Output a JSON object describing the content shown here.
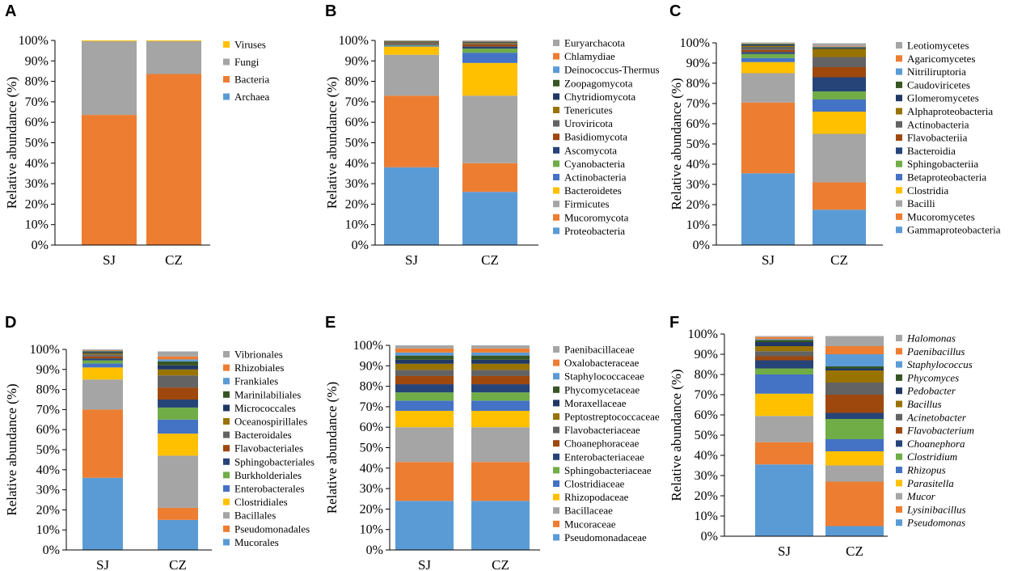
{
  "figure": {
    "y_tick_labels": [
      "0%",
      "10%",
      "20%",
      "30%",
      "40%",
      "50%",
      "60%",
      "70%",
      "80%",
      "90%",
      "100%"
    ]
  },
  "chart_data": [
    {
      "panel": "A",
      "type": "bar",
      "stacked": true,
      "ylabel": "Relative abundance (%)",
      "ylim": [
        0,
        100
      ],
      "categories": [
        "SJ",
        "CZ"
      ],
      "legend_italic": false,
      "series": [
        {
          "name": "Archaea",
          "color": "#5B9BD5",
          "values": [
            0.1,
            0.1
          ]
        },
        {
          "name": "Bacteria",
          "color": "#ED7D31",
          "values": [
            63.5,
            83.5
          ]
        },
        {
          "name": "Fungi",
          "color": "#A5A5A5",
          "values": [
            36.0,
            16.0
          ]
        },
        {
          "name": "Viruses",
          "color": "#FFC000",
          "values": [
            0.4,
            0.4
          ]
        }
      ]
    },
    {
      "panel": "B",
      "type": "bar",
      "stacked": true,
      "ylabel": "Relative abundance (%)",
      "ylim": [
        0,
        100
      ],
      "categories": [
        "SJ",
        "CZ"
      ],
      "legend_italic": false,
      "series": [
        {
          "name": "Proteobacteria",
          "color": "#5B9BD5",
          "values": [
            38,
            26
          ]
        },
        {
          "name": "Mucoromycota",
          "color": "#ED7D31",
          "values": [
            35,
            14
          ]
        },
        {
          "name": "Firmicutes",
          "color": "#A5A5A5",
          "values": [
            20,
            33
          ]
        },
        {
          "name": "Bacteroidetes",
          "color": "#FFC000",
          "values": [
            4,
            16
          ]
        },
        {
          "name": "Actinobacteria",
          "color": "#4472C4",
          "values": [
            0.5,
            5
          ]
        },
        {
          "name": "Cyanobacteria",
          "color": "#70AD47",
          "values": [
            0.3,
            2
          ]
        },
        {
          "name": "Ascomycota",
          "color": "#264478",
          "values": [
            0.3,
            1
          ]
        },
        {
          "name": "Basidiomycota",
          "color": "#9E480E",
          "values": [
            0.3,
            1
          ]
        },
        {
          "name": "Uroviricota",
          "color": "#636363",
          "values": [
            1,
            0.5
          ]
        },
        {
          "name": "Tenericutes",
          "color": "#997300",
          "values": [
            0.2,
            0.3
          ]
        },
        {
          "name": "Chytridiomycota",
          "color": "#203864",
          "values": [
            0.1,
            0.2
          ]
        },
        {
          "name": "Zoopagomycota",
          "color": "#375623",
          "values": [
            0.1,
            0.2
          ]
        },
        {
          "name": "Deinococcus-Thermus",
          "color": "#5B9BD5",
          "values": [
            0.05,
            0.2
          ]
        },
        {
          "name": "Chlamydiae",
          "color": "#ED7D31",
          "values": [
            0.05,
            0.2
          ]
        },
        {
          "name": "Euryarchacota",
          "color": "#A5A5A5",
          "values": [
            0.1,
            0.4
          ]
        }
      ]
    },
    {
      "panel": "C",
      "type": "bar",
      "stacked": true,
      "ylabel": "Relative abundance (%)",
      "ylim": [
        0,
        100
      ],
      "categories": [
        "SJ",
        "CZ"
      ],
      "legend_italic": false,
      "series": [
        {
          "name": "Gammaproteobacteria",
          "color": "#5B9BD5",
          "values": [
            35.5,
            17.5
          ]
        },
        {
          "name": "Mucoromycetes",
          "color": "#ED7D31",
          "values": [
            35,
            13.5
          ]
        },
        {
          "name": "Bacilli",
          "color": "#A5A5A5",
          "values": [
            14.5,
            24
          ]
        },
        {
          "name": "Clostridia",
          "color": "#FFC000",
          "values": [
            5.5,
            11
          ]
        },
        {
          "name": "Betaproteobacteria",
          "color": "#4472C4",
          "values": [
            2,
            6
          ]
        },
        {
          "name": "Sphingobacteriia",
          "color": "#70AD47",
          "values": [
            2,
            4
          ]
        },
        {
          "name": "Bacteroidia",
          "color": "#264478",
          "values": [
            1,
            7
          ]
        },
        {
          "name": "Flavobacteriia",
          "color": "#9E480E",
          "values": [
            1,
            5
          ]
        },
        {
          "name": "Actinobacteria",
          "color": "#636363",
          "values": [
            1.5,
            5
          ]
        },
        {
          "name": "Alphaproteobacteria",
          "color": "#997300",
          "values": [
            0.5,
            4
          ]
        },
        {
          "name": "Glomeromycetes",
          "color": "#203864",
          "values": [
            0.5,
            0.5
          ]
        },
        {
          "name": "Caudoviricetes",
          "color": "#375623",
          "values": [
            0.5,
            0.3
          ]
        },
        {
          "name": "Nitriliruptoria",
          "color": "#5B9BD5",
          "values": [
            0.2,
            0.2
          ]
        },
        {
          "name": "Agaricomycetes",
          "color": "#ED7D31",
          "values": [
            0.2,
            0.3
          ]
        },
        {
          "name": "Leotiomycetes",
          "color": "#A5A5A5",
          "values": [
            0.3,
            1.5
          ]
        }
      ]
    },
    {
      "panel": "D",
      "type": "bar",
      "stacked": true,
      "ylabel": "Relative abundance (%)",
      "ylim": [
        0,
        100
      ],
      "categories": [
        "SJ",
        "CZ"
      ],
      "legend_italic": false,
      "series": [
        {
          "name": "Mucorales",
          "color": "#5B9BD5",
          "values": [
            36,
            15
          ]
        },
        {
          "name": "Pseudomonadales",
          "color": "#ED7D31",
          "values": [
            34,
            6
          ]
        },
        {
          "name": "Bacillales",
          "color": "#A5A5A5",
          "values": [
            15,
            26
          ]
        },
        {
          "name": "Clostridiales",
          "color": "#FFC000",
          "values": [
            6,
            11
          ]
        },
        {
          "name": "Enterobacterales",
          "color": "#4472C4",
          "values": [
            2,
            7
          ]
        },
        {
          "name": "Burkholderiales",
          "color": "#70AD47",
          "values": [
            1.5,
            6
          ]
        },
        {
          "name": "Sphingobacteriales",
          "color": "#264478",
          "values": [
            1,
            4
          ]
        },
        {
          "name": "Flavobacteriales",
          "color": "#9E480E",
          "values": [
            1,
            6
          ]
        },
        {
          "name": "Bacteroidales",
          "color": "#636363",
          "values": [
            1,
            6
          ]
        },
        {
          "name": "Oceanospirillales",
          "color": "#997300",
          "values": [
            0.5,
            3
          ]
        },
        {
          "name": "Micrococcales",
          "color": "#203864",
          "values": [
            0.5,
            2
          ]
        },
        {
          "name": "Marinilabiliales",
          "color": "#375623",
          "values": [
            0.5,
            2
          ]
        },
        {
          "name": "Frankiales",
          "color": "#5B9BD5",
          "values": [
            0.3,
            1
          ]
        },
        {
          "name": "Rhizobiales",
          "color": "#ED7D31",
          "values": [
            0.3,
            1.5
          ]
        },
        {
          "name": "Vibrionales",
          "color": "#A5A5A5",
          "values": [
            0.4,
            2.5
          ]
        }
      ]
    },
    {
      "panel": "E",
      "type": "bar",
      "stacked": true,
      "ylabel": "Relative abundance (%)",
      "ylim": [
        0,
        100
      ],
      "categories": [
        "SJ",
        "CZ"
      ],
      "legend_italic": false,
      "series": [
        {
          "name": "Pseudomonadaceae",
          "color": "#5B9BD5",
          "values": [
            24,
            24
          ]
        },
        {
          "name": "Mucoraceae",
          "color": "#ED7D31",
          "values": [
            19,
            19
          ]
        },
        {
          "name": "Bacillaceae",
          "color": "#A5A5A5",
          "values": [
            17,
            17
          ]
        },
        {
          "name": "Rhizopodaceae",
          "color": "#FFC000",
          "values": [
            8,
            8
          ]
        },
        {
          "name": "Clostridiaceae",
          "color": "#4472C4",
          "values": [
            5,
            5
          ]
        },
        {
          "name": "Sphingobacteriaceae",
          "color": "#70AD47",
          "values": [
            4,
            4
          ]
        },
        {
          "name": "Enterobacteriaceae",
          "color": "#264478",
          "values": [
            4,
            4
          ]
        },
        {
          "name": "Choanephoraceae",
          "color": "#9E480E",
          "values": [
            4,
            4
          ]
        },
        {
          "name": "Flavobacteriaceae",
          "color": "#636363",
          "values": [
            3,
            3
          ]
        },
        {
          "name": "Peptostreptococcaceae",
          "color": "#997300",
          "values": [
            3,
            3
          ]
        },
        {
          "name": "Moraxellaceae",
          "color": "#203864",
          "values": [
            2,
            2
          ]
        },
        {
          "name": "Phycomycetaceae",
          "color": "#375623",
          "values": [
            2,
            2
          ]
        },
        {
          "name": "Staphylococcaceae",
          "color": "#5B9BD5",
          "values": [
            1.5,
            1.5
          ]
        },
        {
          "name": "Oxalobacteraceae",
          "color": "#ED7D31",
          "values": [
            2,
            2
          ]
        },
        {
          "name": "Paenibacillaceae",
          "color": "#A5A5A5",
          "values": [
            1.5,
            1.5
          ]
        }
      ]
    },
    {
      "panel": "F",
      "type": "bar",
      "stacked": true,
      "ylabel": "Relative abundance (%)",
      "ylim": [
        0,
        100
      ],
      "categories": [
        "SJ",
        "CZ"
      ],
      "legend_italic": true,
      "series": [
        {
          "name": "Pseudomonas",
          "color": "#5B9BD5",
          "values": [
            35.5,
            5
          ]
        },
        {
          "name": "Lysinibacillus",
          "color": "#ED7D31",
          "values": [
            11,
            22
          ]
        },
        {
          "name": "Mucor",
          "color": "#A5A5A5",
          "values": [
            13,
            8
          ]
        },
        {
          "name": "Parasitella",
          "color": "#FFC000",
          "values": [
            11,
            7
          ]
        },
        {
          "name": "Rhizopus",
          "color": "#4472C4",
          "values": [
            9.5,
            6
          ]
        },
        {
          "name": "Clostridium",
          "color": "#70AD47",
          "values": [
            3,
            10
          ]
        },
        {
          "name": "Choanephora",
          "color": "#264478",
          "values": [
            4,
            3
          ]
        },
        {
          "name": "Flavobacterium",
          "color": "#9E480E",
          "values": [
            2,
            9
          ]
        },
        {
          "name": "Acinetobacter",
          "color": "#636363",
          "values": [
            2.5,
            6
          ]
        },
        {
          "name": "Bacillus",
          "color": "#997300",
          "values": [
            2.5,
            6
          ]
        },
        {
          "name": "Pedobacter",
          "color": "#203864",
          "values": [
            2,
            1
          ]
        },
        {
          "name": "Phycomyces",
          "color": "#375623",
          "values": [
            1,
            1
          ]
        },
        {
          "name": "Staphylococcus",
          "color": "#5B9BD5",
          "values": [
            0.5,
            6
          ]
        },
        {
          "name": "Paenibacillus",
          "color": "#ED7D31",
          "values": [
            1,
            4
          ]
        },
        {
          "name": "Halomonas",
          "color": "#A5A5A5",
          "values": [
            0.5,
            5
          ]
        }
      ]
    }
  ]
}
